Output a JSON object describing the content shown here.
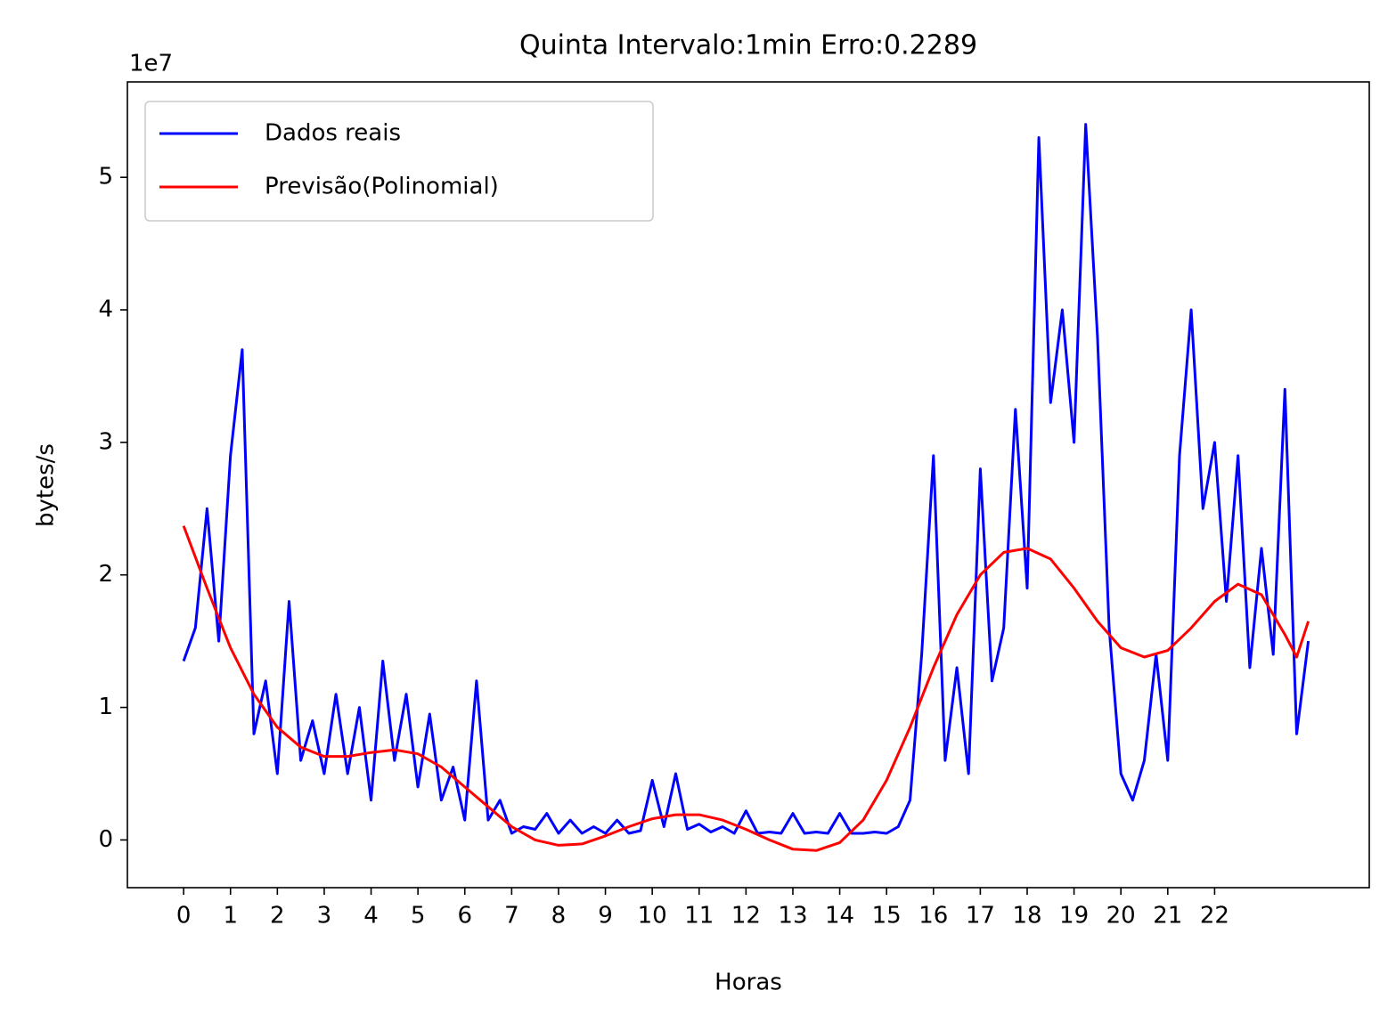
{
  "chart_data": {
    "type": "line",
    "title": "Quinta Intervalo:1min Erro:0.2289",
    "x_label": "Horas",
    "y_label": "bytes/s",
    "offset_text": "1e7",
    "xlim": [
      -1.2,
      25.3
    ],
    "ylim": [
      -0.36,
      5.72
    ],
    "xticks": [
      0,
      1,
      2,
      3,
      4,
      5,
      6,
      7,
      8,
      9,
      10,
      11,
      12,
      13,
      14,
      15,
      16,
      17,
      18,
      19,
      20,
      21,
      22
    ],
    "yticks": [
      0,
      1,
      2,
      3,
      4,
      5
    ],
    "legend": "upper left",
    "grid": false,
    "series": [
      {
        "name": "Dados reais",
        "color": "#0000ff",
        "x": [
          0,
          0.25,
          0.5,
          0.75,
          1,
          1.25,
          1.5,
          1.75,
          2,
          2.25,
          2.5,
          2.75,
          3,
          3.25,
          3.5,
          3.75,
          4,
          4.25,
          4.5,
          4.75,
          5,
          5.25,
          5.5,
          5.75,
          6,
          6.25,
          6.5,
          6.75,
          7,
          7.25,
          7.5,
          7.75,
          8,
          8.25,
          8.5,
          8.75,
          9,
          9.25,
          9.5,
          9.75,
          10,
          10.25,
          10.5,
          10.75,
          11,
          11.25,
          11.5,
          11.75,
          12,
          12.25,
          12.5,
          12.75,
          13,
          13.25,
          13.5,
          13.75,
          14,
          14.25,
          14.5,
          14.75,
          15,
          15.25,
          15.5,
          15.75,
          16,
          16.25,
          16.5,
          16.75,
          17,
          17.25,
          17.5,
          17.75,
          18,
          18.25,
          18.5,
          18.75,
          19,
          19.25,
          19.5,
          19.75,
          20,
          20.25,
          20.5,
          20.75,
          21,
          21.25,
          21.5,
          21.75,
          22,
          22.25,
          22.5,
          22.75,
          23,
          23.25,
          23.5,
          23.75,
          24
        ],
        "values": [
          1.35,
          1.6,
          2.5,
          1.5,
          2.9,
          3.7,
          0.8,
          1.2,
          0.5,
          1.8,
          0.6,
          0.9,
          0.5,
          1.1,
          0.5,
          1.0,
          0.3,
          1.35,
          0.6,
          1.1,
          0.4,
          0.95,
          0.3,
          0.55,
          0.15,
          1.2,
          0.15,
          0.3,
          0.05,
          0.1,
          0.08,
          0.2,
          0.05,
          0.15,
          0.05,
          0.1,
          0.05,
          0.15,
          0.05,
          0.07,
          0.45,
          0.1,
          0.5,
          0.08,
          0.12,
          0.06,
          0.1,
          0.05,
          0.22,
          0.05,
          0.06,
          0.05,
          0.2,
          0.05,
          0.06,
          0.05,
          0.2,
          0.05,
          0.05,
          0.06,
          0.05,
          0.1,
          0.3,
          1.4,
          2.9,
          0.6,
          1.3,
          0.5,
          2.8,
          1.2,
          1.6,
          3.25,
          1.9,
          5.3,
          3.3,
          4.0,
          3.0,
          5.4,
          3.8,
          1.6,
          0.5,
          0.3,
          0.6,
          1.4,
          0.6,
          2.9,
          4.0,
          2.5,
          3.0,
          1.8,
          2.9,
          1.3,
          2.2,
          1.4,
          3.4,
          0.8,
          1.5
        ]
      },
      {
        "name": "Previsão(Polinomial)",
        "color": "#ff0000",
        "x": [
          0,
          0.5,
          1,
          1.5,
          2,
          2.5,
          3,
          3.5,
          4,
          4.5,
          5,
          5.5,
          6,
          6.5,
          7,
          7.5,
          8,
          8.5,
          9,
          9.5,
          10,
          10.5,
          11,
          11.5,
          12,
          12.5,
          13,
          13.5,
          14,
          14.5,
          15,
          15.5,
          16,
          16.5,
          17,
          17.5,
          18,
          18.5,
          19,
          19.5,
          20,
          20.5,
          21,
          21.5,
          22,
          22.5,
          23,
          23.5,
          23.75,
          24
        ],
        "values": [
          2.37,
          1.9,
          1.45,
          1.1,
          0.85,
          0.7,
          0.63,
          0.63,
          0.66,
          0.68,
          0.65,
          0.55,
          0.4,
          0.25,
          0.1,
          0.0,
          -0.04,
          -0.03,
          0.03,
          0.1,
          0.16,
          0.19,
          0.19,
          0.15,
          0.08,
          0.0,
          -0.07,
          -0.08,
          -0.02,
          0.15,
          0.45,
          0.85,
          1.3,
          1.7,
          2.0,
          2.17,
          2.2,
          2.12,
          1.9,
          1.65,
          1.45,
          1.38,
          1.43,
          1.6,
          1.8,
          1.93,
          1.85,
          1.55,
          1.38,
          1.65
        ]
      }
    ]
  }
}
